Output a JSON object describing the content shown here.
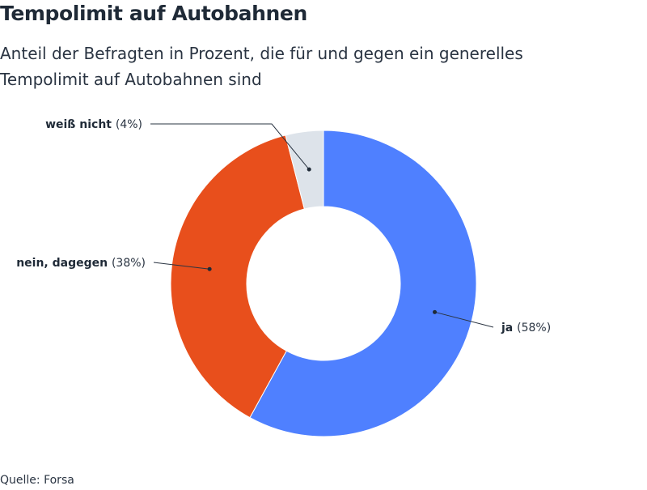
{
  "title": "Tempolimit auf Autobahnen",
  "subtitle": "Anteil der Befragten in Prozent, die für und gegen ein generelles Tempolimit auf Autobahnen sind",
  "source": "Quelle: Forsa",
  "chart_data": {
    "type": "pie",
    "style": "donut",
    "title": "Tempolimit auf Autobahnen",
    "subtitle": "Anteil der Befragten in Prozent, die für und gegen ein generelles Tempolimit auf Autobahnen sind",
    "slices": [
      {
        "label": "ja",
        "value": 58,
        "pct_label": "(58%)",
        "color": "#4f80ff"
      },
      {
        "label": "nein, dagegen",
        "value": 38,
        "pct_label": "(38%)",
        "color": "#e84f1c"
      },
      {
        "label": "weiß nicht",
        "value": 4,
        "pct_label": "(4%)",
        "color": "#dde3ea"
      }
    ],
    "start": "top",
    "direction": "clockwise",
    "legend": "none"
  }
}
